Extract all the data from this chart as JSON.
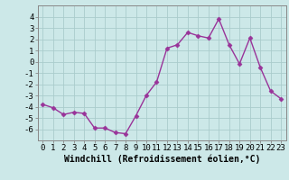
{
  "x": [
    0,
    1,
    2,
    3,
    4,
    5,
    6,
    7,
    8,
    9,
    10,
    11,
    12,
    13,
    14,
    15,
    16,
    17,
    18,
    19,
    20,
    21,
    22,
    23
  ],
  "y": [
    -3.8,
    -4.1,
    -4.7,
    -4.5,
    -4.6,
    -5.9,
    -5.9,
    -6.3,
    -6.4,
    -4.8,
    -3.0,
    -1.8,
    1.2,
    1.5,
    2.6,
    2.3,
    2.1,
    3.8,
    1.5,
    -0.2,
    2.1,
    -0.5,
    -2.6,
    -3.3
  ],
  "line_color": "#993399",
  "marker": "D",
  "marker_size": 2.5,
  "bg_color": "#cce8e8",
  "grid_color": "#aacccc",
  "xlabel": "Windchill (Refroidissement éolien,°C)",
  "xlabel_fontsize": 7,
  "xlim": [
    -0.5,
    23.5
  ],
  "ylim": [
    -7,
    5
  ],
  "yticks": [
    -6,
    -5,
    -4,
    -3,
    -2,
    -1,
    0,
    1,
    2,
    3,
    4
  ],
  "xticks": [
    0,
    1,
    2,
    3,
    4,
    5,
    6,
    7,
    8,
    9,
    10,
    11,
    12,
    13,
    14,
    15,
    16,
    17,
    18,
    19,
    20,
    21,
    22,
    23
  ],
  "tick_fontsize": 6.5,
  "line_width": 1.0,
  "spine_color": "#888888"
}
